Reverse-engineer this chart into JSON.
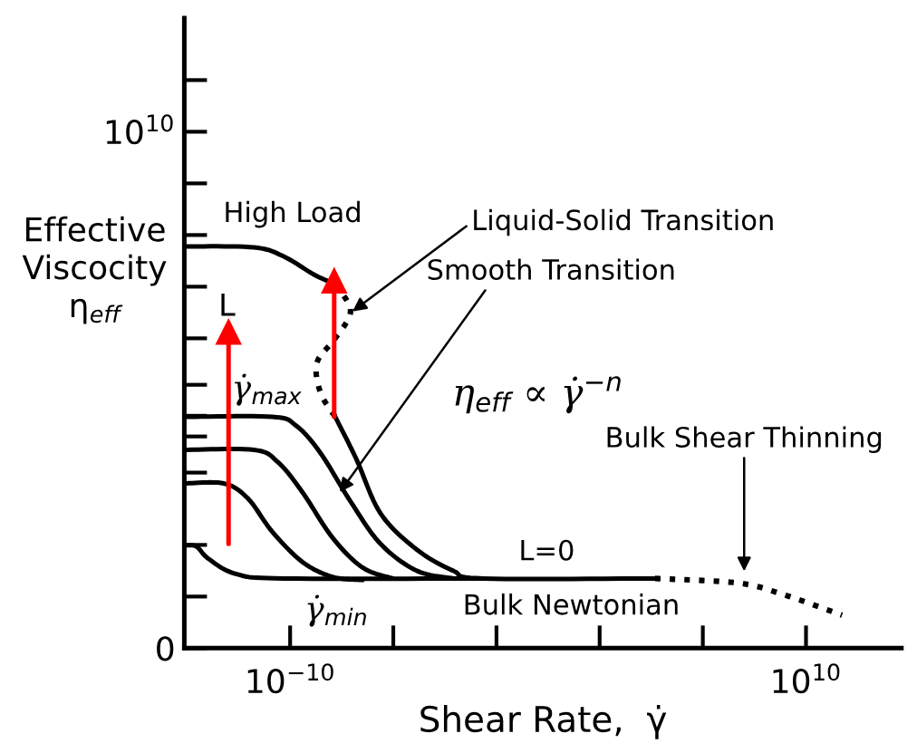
{
  "chart_data": {
    "type": "line",
    "xlabel": "Shear Rate,  γ̇",
    "ylabel": "Effective\nViscocity\nη$_{eff}$",
    "log": "x",
    "xlim": [
      7.9e-15,
      50000000000000.0
    ],
    "xticks": [
      {
        "value": 1e-10,
        "label": "10$^{−10}$"
      },
      {
        "value": 1e-06,
        "label": null
      },
      {
        "value": 0.01,
        "label": null
      },
      {
        "value": 100,
        "label": null
      },
      {
        "value": 1000000.0,
        "label": null
      },
      {
        "value": 10000000000.0,
        "label": "10$^{10}$"
      }
    ],
    "ylim": [
      0,
      12200000000.0
    ],
    "yticks": [
      0,
      {
        "value": 1000000000.0,
        "label": null
      },
      {
        "value": 2000000000.0,
        "label": null
      },
      {
        "value": 3400000000.0,
        "label": null
      },
      {
        "value": 4100000000.0,
        "label": null
      },
      {
        "value": 4500000000.0,
        "label": null
      },
      {
        "value": 5100000000.0,
        "label": null
      },
      {
        "value": 6000000000.0,
        "label": null
      },
      {
        "value": 7000000000.0,
        "label": null
      },
      {
        "value": 8000000000.0,
        "label": null
      },
      {
        "value": 9000000000.0,
        "label": null
      },
      {
        "value": 10000000000.0,
        "label": "10$^{10}$"
      },
      {
        "value": 11000000000.0,
        "label": null
      }
    ],
    "line_style": "solid",
    "series": [
      {
        "color": "#000000",
        "x": [
          7.9e-15,
          4e-12,
          5.9e-11,
          8.7e-10,
          5.6e-09
        ],
        "values": [
          7780000000.0,
          7760000000.0,
          7580000000.0,
          7230000000.0,
          7050000000.0
        ]
      },
      {
        "color": "#000000",
        "line_style": "dotted",
        "x": [
          5.6e-09,
          2.2e-08,
          5.6e-09,
          1.1e-09,
          1.5e-09,
          5.6e-09
        ],
        "values": [
          7050000000.0,
          6530000000.0,
          6000000000.0,
          5530000000.0,
          4950000000.0,
          4480000000.0
        ]
      },
      {
        "color": "#000000",
        "x": [
          5.6e-09,
          3.7e-08,
          3.2e-07,
          8.1e-06,
          0.00021,
          0.0031,
          14000.0
        ],
        "values": [
          4480000000.0,
          3660000000.0,
          2610000000.0,
          1910000000.0,
          1500000000.0,
          1350000000.0,
          1350000000.0
        ]
      },
      {
        "color": "#000000",
        "line_style": "dotted",
        "x": [
          14000.0,
          25000000.0,
          1500000000.0,
          250000000000.0
        ],
        "values": [
          1350000000.0,
          1260000000.0,
          1030000000.0,
          640000000.0
        ]
      },
      {
        "color": "#000000",
        "x": [
          7.9e-15,
          2e-11,
          1.7e-10,
          1.5e-09,
          2.2e-08,
          3.2e-07,
          8.1e-06,
          0.00021
        ],
        "values": [
          4480000000.0,
          4480000000.0,
          4310000000.0,
          3780000000.0,
          2840000000.0,
          2020000000.0,
          1500000000.0,
          1350000000.0
        ]
      },
      {
        "color": "#000000",
        "x": [
          7.9e-15,
          4e-12,
          3.4e-11,
          3e-10,
          4.4e-09,
          6.5e-08,
          9.5e-07
        ],
        "values": [
          3840000000.0,
          3840000000.0,
          3600000000.0,
          3020000000.0,
          2140000000.0,
          1560000000.0,
          1350000000.0
        ]
      },
      {
        "color": "#000000",
        "x": [
          7.9e-15,
          2.7e-13,
          2.3e-12,
          2e-11,
          3e-10,
          4.4e-09,
          6.5e-08
        ],
        "values": [
          3190000000.0,
          3190000000.0,
          2900000000.0,
          2260000000.0,
          1670000000.0,
          1380000000.0,
          1320000000.0
        ]
      },
      {
        "color": "#000000",
        "x": [
          7.9e-15,
          2.3e-14,
          6.9e-14,
          7.8e-13,
          5.9e-11,
          0.0031
        ],
        "values": [
          1990000000.0,
          1970000000.0,
          1730000000.0,
          1440000000.0,
          1350000000.0,
          1350000000.0
        ]
      },
      {
        "color": "#ff0000",
        "marker": "triangle",
        "x": [
          4.1e-13,
          4.1e-13
        ],
        "values": [
          2020000000.0,
          6120000000.0
        ]
      },
      {
        "color": "#ff0000",
        "marker": "triangle",
        "x": [
          5.1e-09,
          5.1e-09
        ],
        "values": [
          4480000000.0,
          7110000000.0
        ]
      }
    ],
    "annotations": [
      "High Load",
      {
        "text": "Liquid-Solid Transition",
        "x": 2.2e-08,
        "y": 6490000000.0
      },
      "L",
      "γ̇$_{max}$",
      {
        "text": "Smooth Transition",
        "x": 7.4e-09,
        "y": 2980000000.0
      },
      "η$_{eff}$ ∝ γ̇$^{−n}$",
      {
        "text": "Bulk Shear Thinning",
        "x": 40000000.0,
        "y": 1440000000.0
      },
      "L=0",
      "Bulk Newtonian",
      "γ̇$_{min}$"
    ]
  }
}
